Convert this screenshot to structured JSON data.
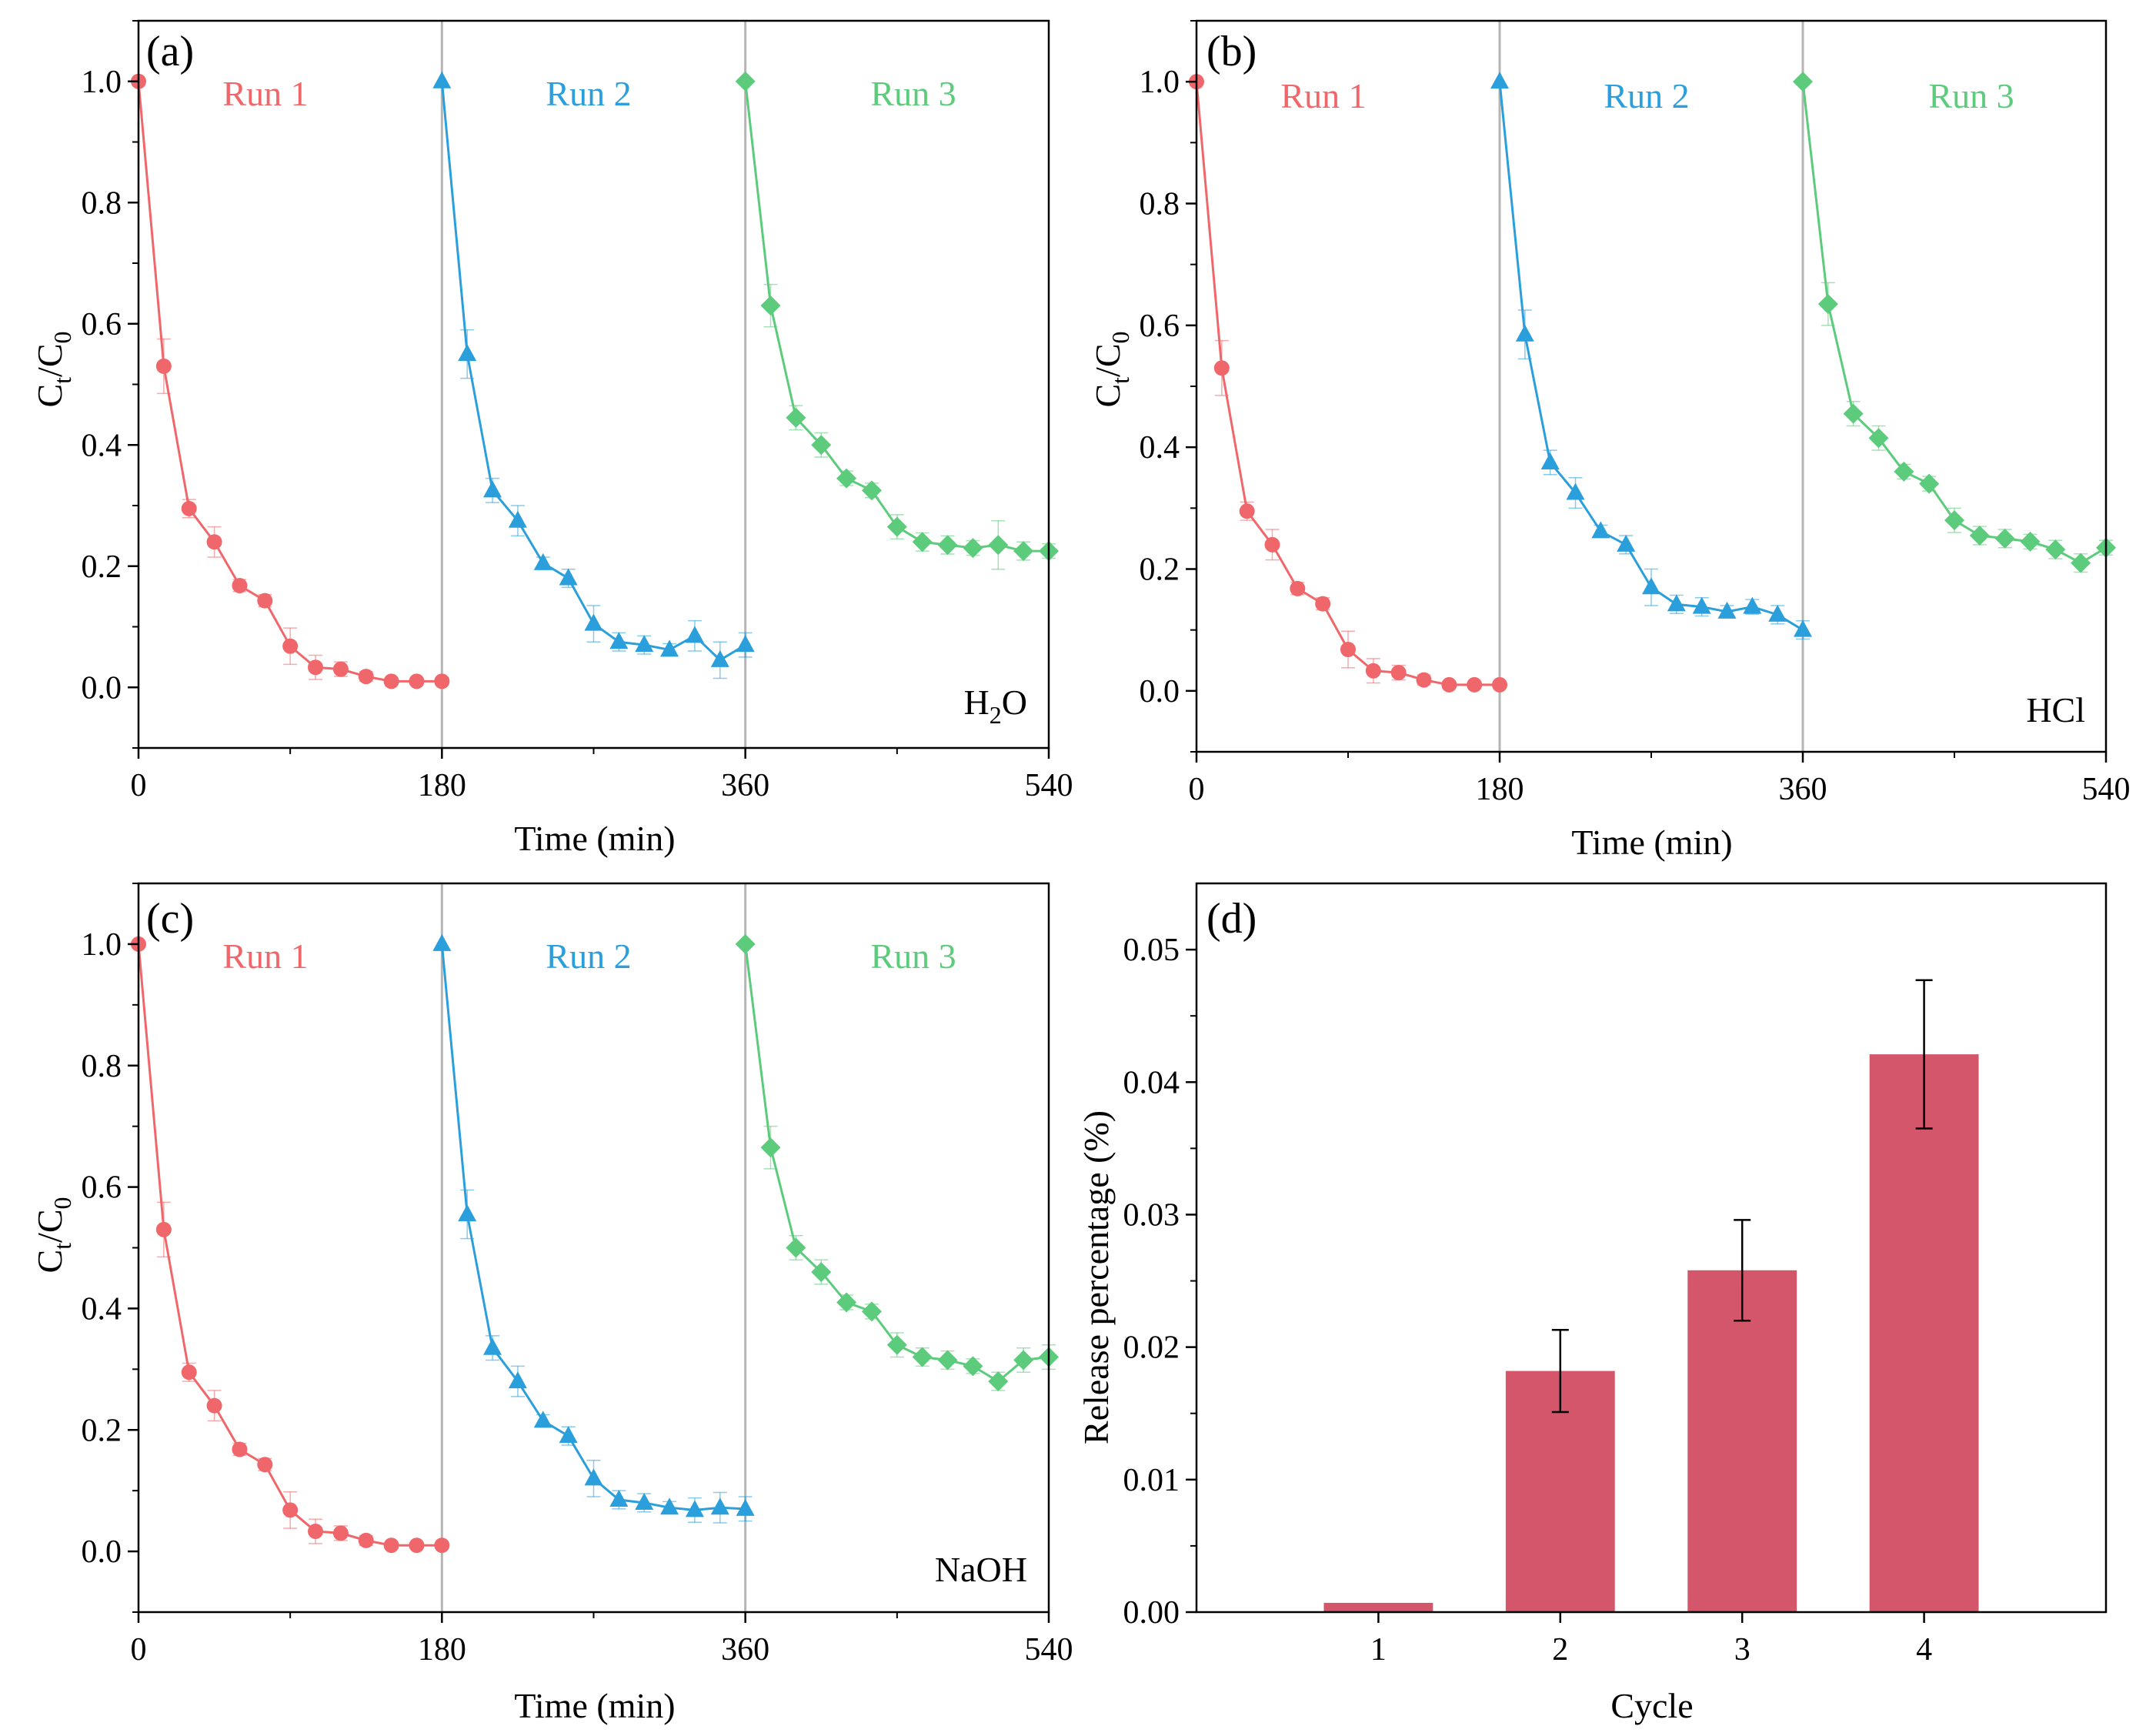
{
  "colors": {
    "run1": "#f0676b",
    "run2": "#2b9fdb",
    "run3": "#5ccb7b",
    "bar": "#d4566a",
    "divider": "#b5b5b5",
    "axis": "#000000",
    "errorbar": "#000000"
  },
  "chart_data": [
    {
      "id": "a",
      "type": "line",
      "panel_label": "(a)",
      "condition_label": "H2O",
      "condition_main": "H",
      "condition_sub": "2",
      "condition_rest": "O",
      "xlabel": "Time (min)",
      "ylabel_main": "C",
      "ylabel_sub1": "t",
      "ylabel_mid": "/C",
      "ylabel_sub2": "0",
      "xlim": [
        0,
        540
      ],
      "ylim": [
        -0.1,
        1.1
      ],
      "xticks": [
        "0",
        "180",
        "360",
        "540"
      ],
      "yticks": [
        "0.0",
        "0.2",
        "0.4",
        "0.6",
        "0.8",
        "1.0"
      ],
      "dividers_x": [
        180,
        360
      ],
      "series": [
        {
          "name": "Run 1",
          "marker": "circle",
          "x": [
            0,
            15,
            30,
            45,
            60,
            75,
            90,
            105,
            120,
            135,
            150,
            165,
            180
          ],
          "y": [
            1.0,
            0.53,
            0.295,
            0.24,
            0.168,
            0.143,
            0.068,
            0.033,
            0.03,
            0.018,
            0.01,
            0.01,
            0.01
          ],
          "err": [
            0,
            0.045,
            0.015,
            0.025,
            0.01,
            0.01,
            0.03,
            0.02,
            0.012,
            0.008,
            0.005,
            0.005,
            0.005
          ]
        },
        {
          "name": "Run 2",
          "marker": "triangle",
          "x": [
            180,
            195,
            210,
            225,
            240,
            255,
            270,
            285,
            300,
            315,
            330,
            345,
            360
          ],
          "y": [
            1.0,
            0.55,
            0.325,
            0.275,
            0.205,
            0.18,
            0.105,
            0.075,
            0.07,
            0.062,
            0.085,
            0.045,
            0.07
          ],
          "err": [
            0,
            0.04,
            0.02,
            0.025,
            0.01,
            0.015,
            0.03,
            0.015,
            0.015,
            0.01,
            0.025,
            0.03,
            0.02
          ]
        },
        {
          "name": "Run 3",
          "marker": "diamond",
          "x": [
            360,
            375,
            390,
            405,
            420,
            435,
            450,
            465,
            480,
            495,
            510,
            525,
            540
          ],
          "y": [
            1.0,
            0.63,
            0.445,
            0.4,
            0.345,
            0.325,
            0.265,
            0.24,
            0.235,
            0.23,
            0.235,
            0.225,
            0.225
          ],
          "err": [
            0,
            0.035,
            0.02,
            0.02,
            0.012,
            0.012,
            0.02,
            0.015,
            0.015,
            0.012,
            0.04,
            0.015,
            0.012
          ]
        }
      ]
    },
    {
      "id": "b",
      "type": "line",
      "panel_label": "(b)",
      "condition_label": "HCl",
      "condition_main": "HCl",
      "condition_sub": "",
      "condition_rest": "",
      "xlabel": "Time (min)",
      "ylabel_main": "C",
      "ylabel_sub1": "t",
      "ylabel_mid": "/C",
      "ylabel_sub2": "0",
      "xlim": [
        0,
        540
      ],
      "ylim": [
        -0.1,
        1.1
      ],
      "xticks": [
        "0",
        "180",
        "360",
        "540"
      ],
      "yticks": [
        "0.0",
        "0.2",
        "0.4",
        "0.6",
        "0.8",
        "1.0"
      ],
      "dividers_x": [
        180,
        360
      ],
      "series": [
        {
          "name": "Run 1",
          "marker": "circle",
          "x": [
            0,
            15,
            30,
            45,
            60,
            75,
            90,
            105,
            120,
            135,
            150,
            165,
            180
          ],
          "y": [
            1.0,
            0.53,
            0.295,
            0.24,
            0.168,
            0.143,
            0.068,
            0.033,
            0.03,
            0.018,
            0.01,
            0.01,
            0.01
          ],
          "err": [
            0,
            0.045,
            0.015,
            0.025,
            0.01,
            0.01,
            0.03,
            0.02,
            0.012,
            0.008,
            0.005,
            0.005,
            0.005
          ]
        },
        {
          "name": "Run 2",
          "marker": "triangle",
          "x": [
            180,
            195,
            210,
            225,
            240,
            255,
            270,
            285,
            300,
            315,
            330,
            345,
            360
          ],
          "y": [
            1.0,
            0.585,
            0.375,
            0.325,
            0.262,
            0.24,
            0.17,
            0.142,
            0.138,
            0.13,
            0.138,
            0.125,
            0.1
          ],
          "err": [
            0,
            0.04,
            0.02,
            0.025,
            0.01,
            0.015,
            0.03,
            0.015,
            0.015,
            0.01,
            0.012,
            0.015,
            0.015
          ]
        },
        {
          "name": "Run 3",
          "marker": "diamond",
          "x": [
            360,
            375,
            390,
            405,
            420,
            435,
            450,
            465,
            480,
            495,
            510,
            525,
            540
          ],
          "y": [
            1.0,
            0.635,
            0.455,
            0.415,
            0.36,
            0.34,
            0.28,
            0.255,
            0.25,
            0.245,
            0.232,
            0.21,
            0.235
          ],
          "err": [
            0,
            0.035,
            0.02,
            0.02,
            0.012,
            0.012,
            0.02,
            0.015,
            0.015,
            0.012,
            0.015,
            0.015,
            0.012
          ]
        }
      ]
    },
    {
      "id": "c",
      "type": "line",
      "panel_label": "(c)",
      "condition_label": "NaOH",
      "condition_main": "NaOH",
      "condition_sub": "",
      "condition_rest": "",
      "xlabel": "Time (min)",
      "ylabel_main": "C",
      "ylabel_sub1": "t",
      "ylabel_mid": "/C",
      "ylabel_sub2": "0",
      "xlim": [
        0,
        540
      ],
      "ylim": [
        -0.1,
        1.1
      ],
      "xticks": [
        "0",
        "180",
        "360",
        "540"
      ],
      "yticks": [
        "0.0",
        "0.2",
        "0.4",
        "0.6",
        "0.8",
        "1.0"
      ],
      "dividers_x": [
        180,
        360
      ],
      "series": [
        {
          "name": "Run 1",
          "marker": "circle",
          "x": [
            0,
            15,
            30,
            45,
            60,
            75,
            90,
            105,
            120,
            135,
            150,
            165,
            180
          ],
          "y": [
            1.0,
            0.53,
            0.295,
            0.24,
            0.168,
            0.143,
            0.068,
            0.033,
            0.03,
            0.018,
            0.01,
            0.01,
            0.01
          ],
          "err": [
            0,
            0.045,
            0.015,
            0.025,
            0.01,
            0.01,
            0.03,
            0.02,
            0.012,
            0.008,
            0.005,
            0.005,
            0.005
          ]
        },
        {
          "name": "Run 2",
          "marker": "triangle",
          "x": [
            180,
            195,
            210,
            225,
            240,
            255,
            270,
            285,
            300,
            315,
            330,
            345,
            360
          ],
          "y": [
            1.0,
            0.555,
            0.335,
            0.28,
            0.215,
            0.19,
            0.12,
            0.085,
            0.08,
            0.072,
            0.068,
            0.072,
            0.07
          ],
          "err": [
            0,
            0.04,
            0.02,
            0.025,
            0.01,
            0.015,
            0.03,
            0.015,
            0.015,
            0.01,
            0.02,
            0.025,
            0.02
          ]
        },
        {
          "name": "Run 3",
          "marker": "diamond",
          "x": [
            360,
            375,
            390,
            405,
            420,
            435,
            450,
            465,
            480,
            495,
            510,
            525,
            540
          ],
          "y": [
            1.0,
            0.665,
            0.5,
            0.46,
            0.41,
            0.395,
            0.34,
            0.32,
            0.315,
            0.305,
            0.28,
            0.315,
            0.32
          ],
          "err": [
            0,
            0.035,
            0.02,
            0.02,
            0.012,
            0.012,
            0.02,
            0.015,
            0.015,
            0.012,
            0.015,
            0.02,
            0.02
          ]
        }
      ]
    },
    {
      "id": "d",
      "type": "bar",
      "panel_label": "(d)",
      "xlabel": "Cycle",
      "ylabel": "Release percentage (%)",
      "categories": [
        "1",
        "2",
        "3",
        "4"
      ],
      "values": [
        0.0007,
        0.0182,
        0.0258,
        0.0421
      ],
      "errors": [
        0.0,
        0.0031,
        0.0038,
        0.0056
      ],
      "ylim": [
        0.0,
        0.055
      ],
      "yticks": [
        "0.00",
        "0.01",
        "0.02",
        "0.03",
        "0.04",
        "0.05"
      ]
    }
  ]
}
